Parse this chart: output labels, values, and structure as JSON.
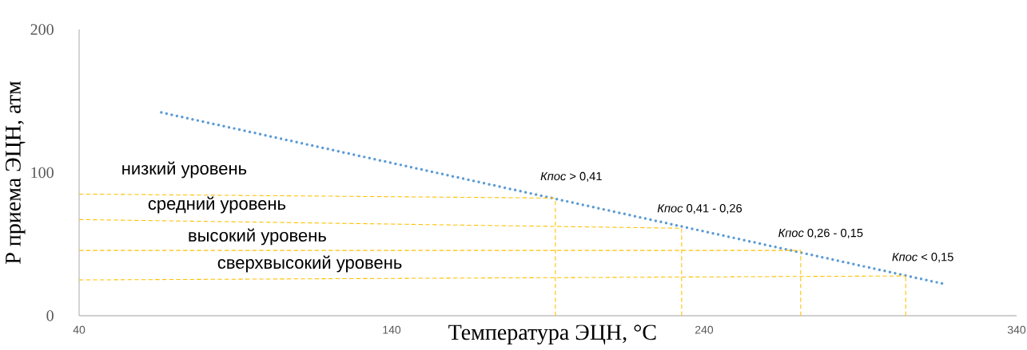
{
  "chart_data": {
    "type": "line",
    "xlabel": "Температура ЭЦН, °С",
    "ylabel": "Р приема ЭЦН, атм",
    "xlim": [
      40,
      340
    ],
    "ylim": [
      0,
      200
    ],
    "xticks": [
      40,
      140,
      240,
      340
    ],
    "yticks": [
      0,
      100,
      200
    ],
    "grid": false,
    "marker": "none",
    "series": [
      {
        "color": "#5b9bd5",
        "line_style": "dotted",
        "x": [
          66.3,
          317.2
        ],
        "values": [
          142,
          22
        ]
      },
      {
        "color": "#ffc000",
        "line_style": "dashed",
        "x": [
          40,
          192.4
        ],
        "values": [
          85,
          82.2
        ]
      },
      {
        "color": "#ffc000",
        "line_style": "dashed",
        "x": [
          40,
          232.8
        ],
        "values": [
          67.2,
          61.1
        ]
      },
      {
        "color": "#ffc000",
        "line_style": "dashed",
        "x": [
          40,
          270.9
        ],
        "values": [
          45.6,
          45.6
        ]
      },
      {
        "color": "#ffc000",
        "line_style": "dashed",
        "x": [
          40,
          304.5
        ],
        "values": [
          25,
          27.8
        ]
      },
      {
        "color": "#ffc000",
        "line_style": "dashed",
        "x": [
          192.4,
          192.4
        ],
        "values": [
          0,
          82.2
        ]
      },
      {
        "color": "#ffc000",
        "line_style": "dashed",
        "x": [
          232.8,
          232.8
        ],
        "values": [
          0,
          61.1
        ]
      },
      {
        "color": "#ffc000",
        "line_style": "dashed",
        "x": [
          270.9,
          270.9
        ],
        "values": [
          0,
          45.6
        ]
      },
      {
        "color": "#ffc000",
        "line_style": "dashed",
        "x": [
          304.5,
          304.5
        ],
        "values": [
          0,
          27.8
        ]
      }
    ],
    "annotations": [
      "низкий уровень",
      "средний уровень",
      "высокий уровень",
      "сверхвысокий уровень",
      "*Кпос* > 0,41",
      "*Кпос* 0,41 - 0,26",
      "*Кпос* 0,26 - 0,15",
      "*Кпос* < 0,15"
    ]
  }
}
